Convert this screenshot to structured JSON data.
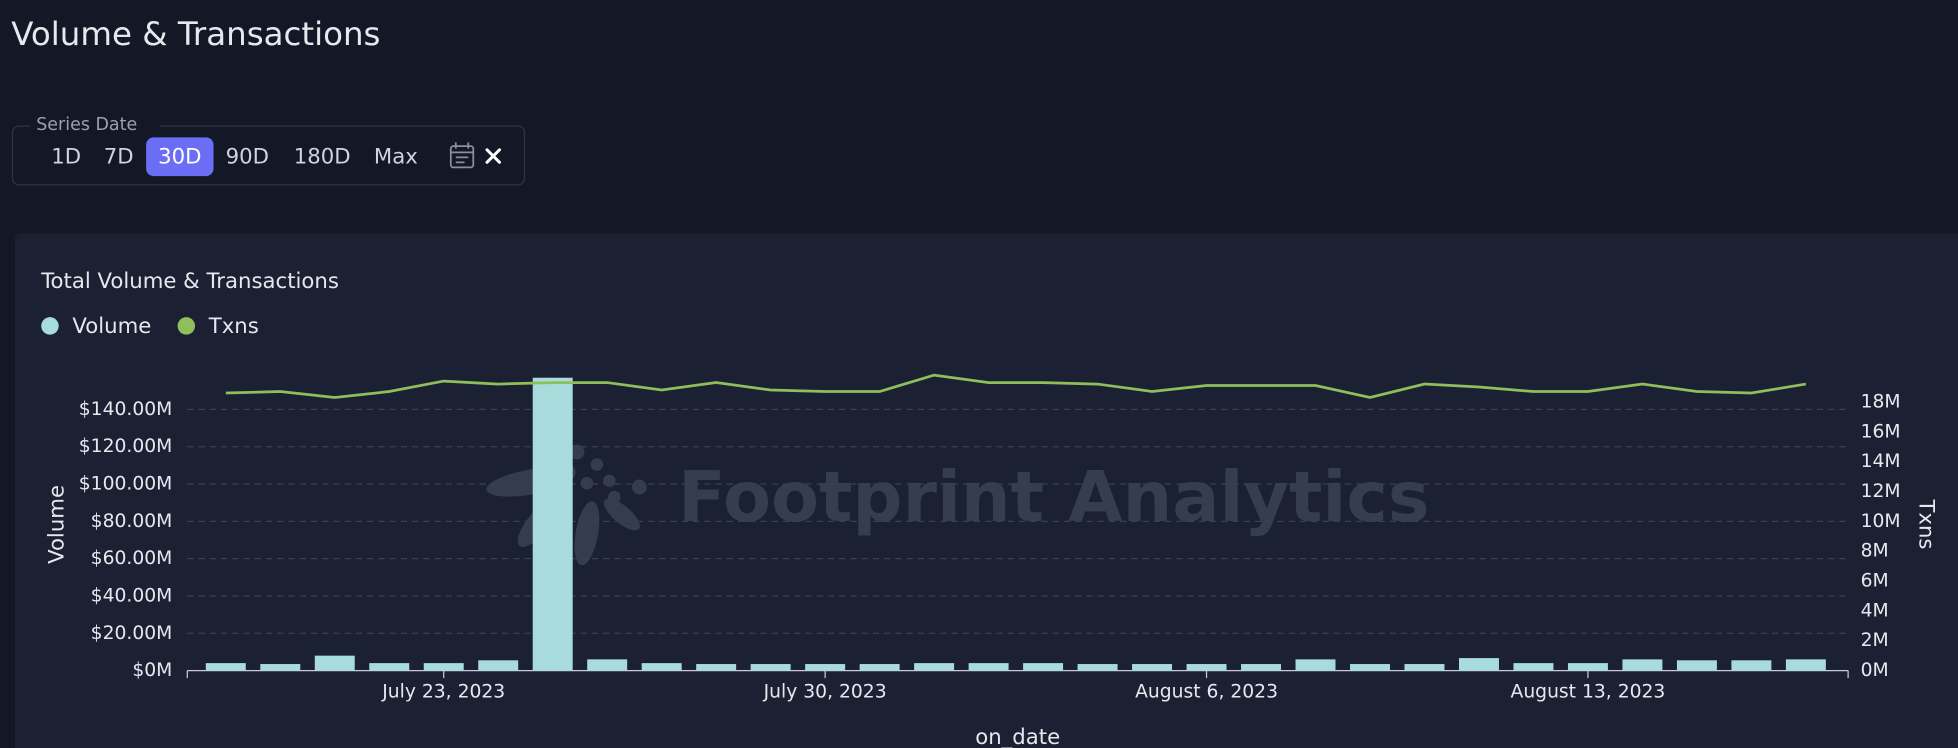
{
  "header": {
    "title": "Volume & Transactions"
  },
  "filter": {
    "label": "Series Date",
    "options": [
      "1D",
      "7D",
      "30D",
      "90D",
      "180D",
      "Max"
    ],
    "active": 2
  },
  "chart_data": {
    "type": "combo",
    "title": "Total Volume & Transactions",
    "watermark": "Footprint Analytics",
    "x_label": "on_date",
    "y_label": "Volume",
    "y2_label": "Txns",
    "categories": [
      null,
      null,
      null,
      null,
      "July 23, 2023",
      null,
      null,
      null,
      null,
      null,
      null,
      "July 30, 2023",
      null,
      null,
      null,
      null,
      null,
      null,
      "August 6, 2023",
      null,
      null,
      null,
      null,
      null,
      null,
      "August 13, 2023",
      null,
      null,
      null,
      null
    ],
    "series": [
      {
        "name": "Volume",
        "type": "bar",
        "color": "#a8dcdc",
        "values": [
          4000000,
          3500000,
          8000000,
          4000000,
          4000000,
          5500000,
          157000000,
          6000000,
          4000000,
          3500000,
          3500000,
          3500000,
          3500000,
          4000000,
          4000000,
          4000000,
          3500000,
          3500000,
          3500000,
          3500000,
          6000000,
          3500000,
          3500000,
          6700000,
          4000000,
          4000000,
          6000000,
          5500000,
          5500000,
          6000000
        ]
      },
      {
        "name": "Txns",
        "type": "line",
        "axis": "y2",
        "color": "#8fbf5a",
        "values": [
          18600000,
          18700000,
          18300000,
          18700000,
          19400000,
          19200000,
          19300000,
          19300000,
          18800000,
          19300000,
          18800000,
          18700000,
          18700000,
          19800000,
          19300000,
          19300000,
          19200000,
          18700000,
          19100000,
          19100000,
          19100000,
          18300000,
          19200000,
          19000000,
          18700000,
          18700000,
          19200000,
          18700000,
          18600000,
          19200000
        ]
      }
    ],
    "ylim": [
      0,
      160000000
    ],
    "yticks": [
      {
        "value": 0,
        "label": "$0M"
      },
      {
        "value": 20000000,
        "label": "$20.00M"
      },
      {
        "value": 40000000,
        "label": "$40.00M"
      },
      {
        "value": 60000000,
        "label": "$60.00M"
      },
      {
        "value": 80000000,
        "label": "$80.00M"
      },
      {
        "value": 100000000,
        "label": "$100.00M"
      },
      {
        "value": 120000000,
        "label": "$120.00M"
      },
      {
        "value": 140000000,
        "label": "$140.00M"
      }
    ],
    "y2lim": [
      0,
      20000000
    ],
    "y2ticks": [
      {
        "value": 0,
        "label": "0M"
      },
      {
        "value": 2000000,
        "label": "2M"
      },
      {
        "value": 4000000,
        "label": "4M"
      },
      {
        "value": 6000000,
        "label": "6M"
      },
      {
        "value": 8000000,
        "label": "8M"
      },
      {
        "value": 10000000,
        "label": "10M"
      },
      {
        "value": 12000000,
        "label": "12M"
      },
      {
        "value": 14000000,
        "label": "14M"
      },
      {
        "value": 16000000,
        "label": "16M"
      },
      {
        "value": 18000000,
        "label": "18M"
      }
    ],
    "grid": true,
    "legend": "top-left"
  }
}
